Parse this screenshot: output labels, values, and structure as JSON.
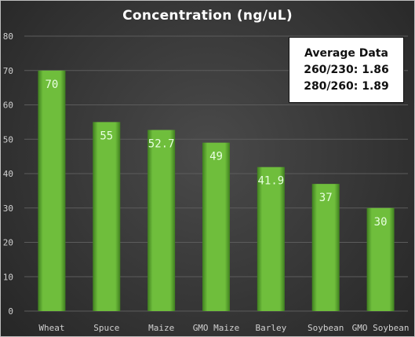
{
  "colors": {
    "bar": "#6fbe3c",
    "bar_dark": "#3f7f1f",
    "grid": "#5c5c5c",
    "axis_text": "#d0d0d0",
    "label_text": "#e8ffe0"
  },
  "info_box": {
    "heading": "Average Data",
    "line1": "260/230: 1.86",
    "line2": "280/260: 1.89"
  },
  "chart_data": {
    "type": "bar",
    "title": "Concentration (ng/uL)",
    "xlabel": "",
    "ylabel": "",
    "categories": [
      "Wheat",
      "Spuce",
      "Maize",
      "GMO Maize",
      "Barley",
      "Soybean",
      "GMO Soybean"
    ],
    "values": [
      70,
      55,
      52.7,
      49,
      41.9,
      37,
      30
    ],
    "value_labels": [
      "70",
      "55",
      "52.7",
      "49",
      "41.9",
      "37",
      "30"
    ],
    "ylim": [
      0,
      80
    ],
    "yticks": [
      0,
      10,
      20,
      30,
      40,
      50,
      60,
      70,
      80
    ],
    "grid": true,
    "legend": "top-right"
  }
}
